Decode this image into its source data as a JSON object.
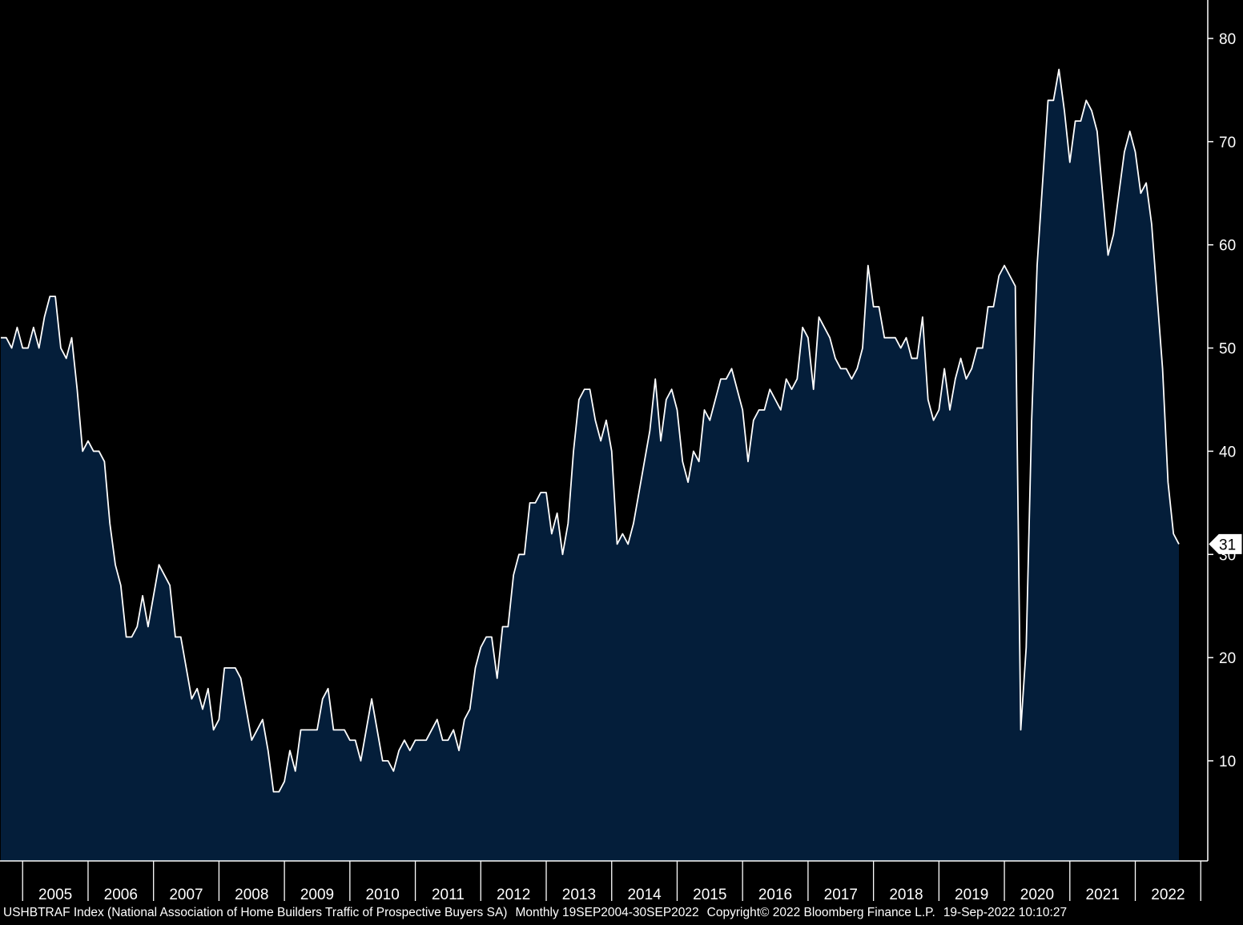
{
  "footer": {
    "ticker": "USHBTRAF Index (National Association of Home Builders Traffic of Prospective Buyers SA)",
    "frequency": "Monthly 19SEP2004-30SEP2022",
    "copyright": "Copyright© 2022 Bloomberg Finance L.P.",
    "timestamp": "19-Sep-2022 10:10:27"
  },
  "chart_data": {
    "type": "area",
    "xlabel": "",
    "ylabel": "",
    "ylim": [
      0,
      84
    ],
    "yticks": [
      10,
      20,
      30,
      40,
      50,
      60,
      70,
      80
    ],
    "xticks": [
      "2005",
      "2006",
      "2007",
      "2008",
      "2009",
      "2010",
      "2011",
      "2012",
      "2013",
      "2014",
      "2015",
      "2016",
      "2017",
      "2018",
      "2019",
      "2020",
      "2021",
      "2022"
    ],
    "last_value_label": "31",
    "grid": false,
    "colors": {
      "background": "#000000",
      "fill": "#041e3a",
      "line": "#ffffff",
      "axis": "#ffffff"
    },
    "start": "2004-09",
    "series": [
      {
        "values": [
          51,
          51,
          50,
          52,
          50,
          50,
          52,
          50,
          53,
          55,
          55,
          50,
          49,
          51,
          46,
          40,
          41,
          40,
          40,
          39,
          33,
          29,
          27,
          22,
          22,
          23,
          26,
          23,
          26,
          29,
          28,
          27,
          22,
          22,
          19,
          16,
          17,
          15,
          17,
          13,
          14,
          19,
          19,
          19,
          18,
          15,
          12,
          13,
          14,
          11,
          7,
          7,
          8,
          11,
          9,
          13,
          13,
          13,
          13,
          16,
          17,
          13,
          13,
          13,
          12,
          12,
          10,
          13,
          16,
          13,
          10,
          10,
          9,
          11,
          12,
          11,
          12,
          12,
          12,
          13,
          14,
          12,
          12,
          13,
          11,
          14,
          15,
          19,
          21,
          22,
          22,
          18,
          23,
          23,
          28,
          30,
          30,
          35,
          35,
          36,
          36,
          32,
          34,
          30,
          33,
          40,
          45,
          46,
          46,
          43,
          41,
          43,
          40,
          31,
          32,
          31,
          33,
          36,
          39,
          42,
          47,
          41,
          45,
          46,
          44,
          39,
          37,
          40,
          39,
          44,
          43,
          45,
          47,
          47,
          48,
          46,
          44,
          39,
          43,
          44,
          44,
          46,
          45,
          44,
          47,
          46,
          47,
          52,
          51,
          46,
          53,
          52,
          51,
          49,
          48,
          48,
          47,
          48,
          50,
          58,
          54,
          54,
          51,
          51,
          51,
          50,
          51,
          49,
          49,
          53,
          45,
          43,
          44,
          48,
          44,
          47,
          49,
          47,
          48,
          50,
          50,
          54,
          54,
          57,
          58,
          57,
          56,
          13,
          21,
          43,
          58,
          66,
          74,
          74,
          77,
          73,
          68,
          72,
          72,
          74,
          73,
          71,
          65,
          59,
          61,
          65,
          69,
          71,
          69,
          65,
          66,
          62,
          55,
          48,
          37,
          32,
          31
        ]
      }
    ]
  }
}
